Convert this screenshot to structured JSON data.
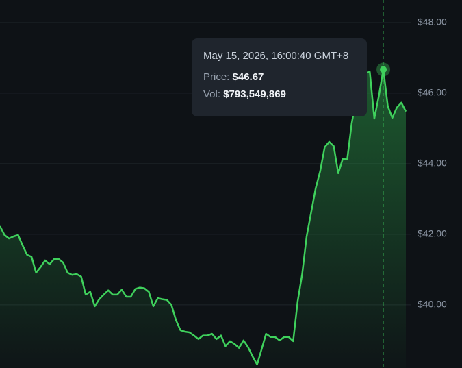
{
  "chart_data": {
    "type": "line",
    "values": [
      42.23,
      41.98,
      41.88,
      41.94,
      41.98,
      41.69,
      41.42,
      41.36,
      40.91,
      41.07,
      41.26,
      41.15,
      41.3,
      41.3,
      41.2,
      40.91,
      40.85,
      40.87,
      40.8,
      40.29,
      40.37,
      39.96,
      40.16,
      40.29,
      40.41,
      40.29,
      40.29,
      40.43,
      40.23,
      40.23,
      40.45,
      40.49,
      40.47,
      40.37,
      39.96,
      40.19,
      40.16,
      40.14,
      40.0,
      39.57,
      39.28,
      39.24,
      39.22,
      39.13,
      39.03,
      39.13,
      39.13,
      39.18,
      39.03,
      39.13,
      38.83,
      38.97,
      38.89,
      38.78,
      38.99,
      38.8,
      38.54,
      38.31,
      38.74,
      39.18,
      39.09,
      39.09,
      38.99,
      39.09,
      39.09,
      38.97,
      40.1,
      40.87,
      41.94,
      42.62,
      43.3,
      43.79,
      44.47,
      44.62,
      44.5,
      43.73,
      44.14,
      44.12,
      45.15,
      45.83,
      46.54,
      46.58,
      46.6,
      45.28,
      45.92,
      46.67,
      45.63,
      45.3,
      45.59,
      45.73,
      45.48
    ],
    "color": "#3fd05c",
    "ylim": [
      38.21,
      48.64
    ],
    "yticks": [
      {
        "value": 40,
        "label": "$40.00"
      },
      {
        "value": 42,
        "label": "$42.00"
      },
      {
        "value": 44,
        "label": "$44.00"
      },
      {
        "value": 46,
        "label": "$46.00"
      },
      {
        "value": 48,
        "label": "$48.00"
      }
    ],
    "grid": true,
    "tooltip": {
      "index": 85,
      "time": "May 15, 2026, 16:00:40 GMT+8",
      "price_label": "Price:",
      "price": "$46.67",
      "vol_label": "Vol:",
      "vol": "$793,549,869"
    }
  }
}
